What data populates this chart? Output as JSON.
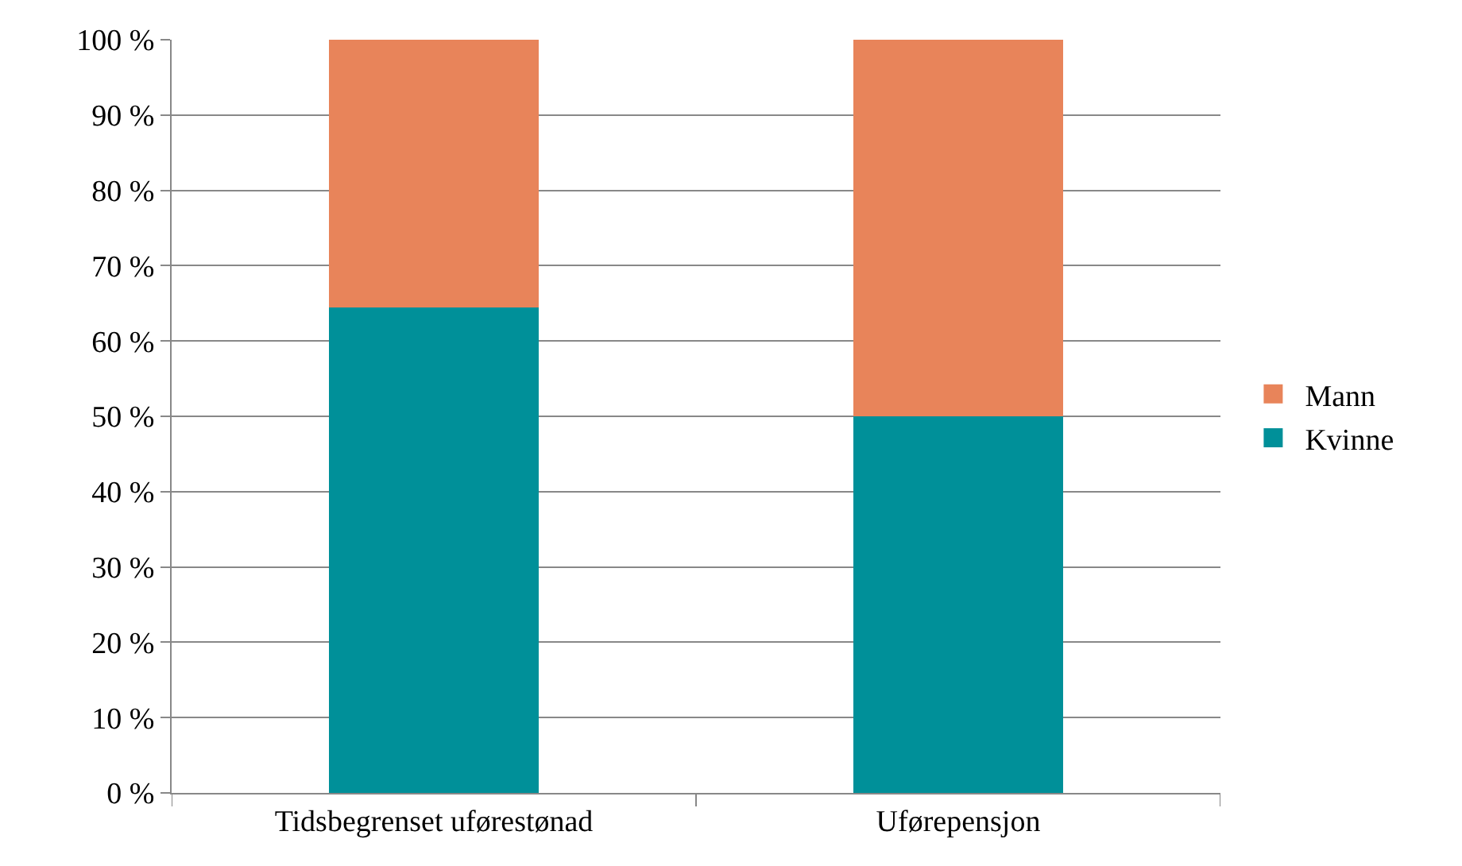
{
  "chart_data": {
    "type": "bar",
    "stacked": true,
    "categories": [
      "Tidsbegrenset uførestønad",
      "Uførepensjon"
    ],
    "series": [
      {
        "name": "Kvinne",
        "color": "#009099",
        "values": [
          64.5,
          50
        ]
      },
      {
        "name": "Mann",
        "color": "#e8845a",
        "values": [
          35.5,
          50
        ]
      }
    ],
    "ylim": [
      0,
      100
    ],
    "yticks": [
      {
        "value": 0,
        "label": "0 %"
      },
      {
        "value": 10,
        "label": "10 %"
      },
      {
        "value": 20,
        "label": "20 %"
      },
      {
        "value": 30,
        "label": "30 %"
      },
      {
        "value": 40,
        "label": "40 %"
      },
      {
        "value": 50,
        "label": "50 %"
      },
      {
        "value": 60,
        "label": "60 %"
      },
      {
        "value": 70,
        "label": "70 %"
      },
      {
        "value": 80,
        "label": "80 %"
      },
      {
        "value": 90,
        "label": "90 %"
      },
      {
        "value": 100,
        "label": "100 %"
      }
    ],
    "grid": "y",
    "legend": "right"
  }
}
